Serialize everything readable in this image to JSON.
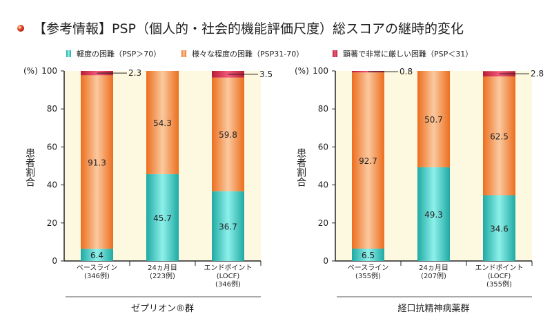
{
  "title": "【参考情報】PSP（個人的・社会的機能評価尺度）総スコアの継時的変化",
  "colors": {
    "mild": "#2fc4bd",
    "moderate": "#f08a3c",
    "severe": "#e0304a",
    "plot_bg": "#fdf8e0"
  },
  "legend": [
    "軽度の困難（PSP＞70）",
    "様々な程度の困難（PSP31-70）",
    "顕著で非常に厳しい困難（PSP＜31）"
  ],
  "chart_data": [
    {
      "type": "stacked-bar",
      "group_label": "ゼプリオン®群",
      "ylabel": "患者割合",
      "yunit": "(%)",
      "ylim": [
        0,
        100
      ],
      "yticks": [
        0,
        20,
        40,
        60,
        80,
        100
      ],
      "categories": [
        [
          "ベースライン",
          "(346例)"
        ],
        [
          "24ヵ月目",
          "(223例)"
        ],
        [
          "エンドポイント",
          "(LOCF)",
          "(346例)"
        ]
      ],
      "series": [
        {
          "name": "軽度の困難（PSP＞70）",
          "values": [
            6.4,
            45.7,
            36.7
          ]
        },
        {
          "name": "様々な程度の困難（PSP31-70）",
          "values": [
            91.3,
            54.3,
            59.8
          ]
        },
        {
          "name": "顕著で非常に厳しい困難（PSP＜31）",
          "values": [
            2.3,
            0,
            3.5
          ]
        }
      ]
    },
    {
      "type": "stacked-bar",
      "group_label": "経口抗精神病薬群",
      "ylabel": "患者割合",
      "yunit": "(%)",
      "ylim": [
        0,
        100
      ],
      "yticks": [
        0,
        20,
        40,
        60,
        80,
        100
      ],
      "categories": [
        [
          "ベースライン",
          "(355例)"
        ],
        [
          "24ヵ月目",
          "(207例)"
        ],
        [
          "エンドポイント",
          "(LOCF)",
          "(355例)"
        ]
      ],
      "series": [
        {
          "name": "軽度の困難（PSP＞70）",
          "values": [
            6.5,
            49.3,
            34.6
          ]
        },
        {
          "name": "様々な程度の困難（PSP31-70）",
          "values": [
            92.7,
            50.7,
            62.5
          ]
        },
        {
          "name": "顕著で非常に厳しい困難（PSP＜31）",
          "values": [
            0.8,
            0,
            2.8
          ]
        }
      ]
    }
  ]
}
